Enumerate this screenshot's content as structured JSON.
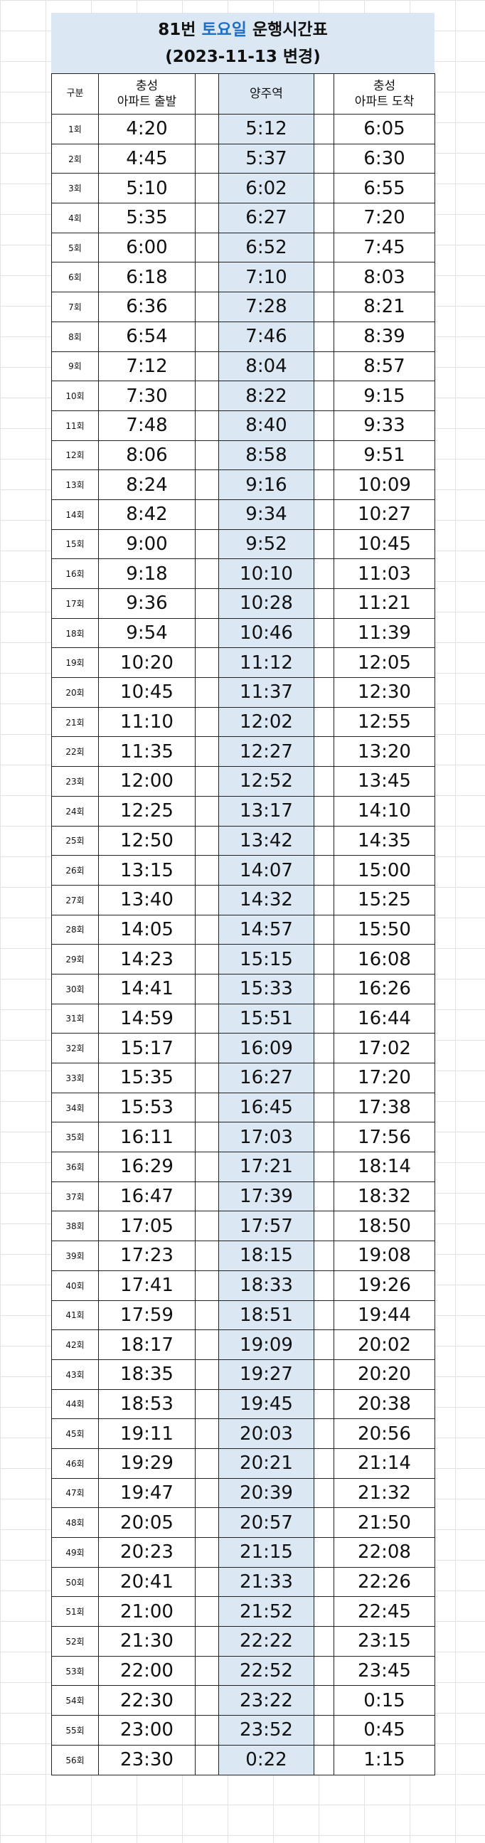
{
  "title": {
    "line1_prefix": "81번",
    "line1_highlight": "토요일",
    "line1_suffix": "운행시간표",
    "line2": "(2023-11-13 변경)"
  },
  "colors": {
    "highlight": "#1f6fc4",
    "header_fill": "#dbe7f3"
  },
  "columns": {
    "index": "구분",
    "start_line1": "충성",
    "start_line2": "아파트 출발",
    "mid": "양주역",
    "end_line1": "충성",
    "end_line2": "아파트 도착"
  },
  "rows": [
    {
      "n": "1회",
      "dep": "4:20",
      "mid": "5:12",
      "arr": "6:05"
    },
    {
      "n": "2회",
      "dep": "4:45",
      "mid": "5:37",
      "arr": "6:30"
    },
    {
      "n": "3회",
      "dep": "5:10",
      "mid": "6:02",
      "arr": "6:55"
    },
    {
      "n": "4회",
      "dep": "5:35",
      "mid": "6:27",
      "arr": "7:20"
    },
    {
      "n": "5회",
      "dep": "6:00",
      "mid": "6:52",
      "arr": "7:45"
    },
    {
      "n": "6회",
      "dep": "6:18",
      "mid": "7:10",
      "arr": "8:03"
    },
    {
      "n": "7회",
      "dep": "6:36",
      "mid": "7:28",
      "arr": "8:21"
    },
    {
      "n": "8회",
      "dep": "6:54",
      "mid": "7:46",
      "arr": "8:39"
    },
    {
      "n": "9회",
      "dep": "7:12",
      "mid": "8:04",
      "arr": "8:57"
    },
    {
      "n": "10회",
      "dep": "7:30",
      "mid": "8:22",
      "arr": "9:15"
    },
    {
      "n": "11회",
      "dep": "7:48",
      "mid": "8:40",
      "arr": "9:33"
    },
    {
      "n": "12회",
      "dep": "8:06",
      "mid": "8:58",
      "arr": "9:51"
    },
    {
      "n": "13회",
      "dep": "8:24",
      "mid": "9:16",
      "arr": "10:09"
    },
    {
      "n": "14회",
      "dep": "8:42",
      "mid": "9:34",
      "arr": "10:27"
    },
    {
      "n": "15회",
      "dep": "9:00",
      "mid": "9:52",
      "arr": "10:45"
    },
    {
      "n": "16회",
      "dep": "9:18",
      "mid": "10:10",
      "arr": "11:03"
    },
    {
      "n": "17회",
      "dep": "9:36",
      "mid": "10:28",
      "arr": "11:21"
    },
    {
      "n": "18회",
      "dep": "9:54",
      "mid": "10:46",
      "arr": "11:39"
    },
    {
      "n": "19회",
      "dep": "10:20",
      "mid": "11:12",
      "arr": "12:05"
    },
    {
      "n": "20회",
      "dep": "10:45",
      "mid": "11:37",
      "arr": "12:30"
    },
    {
      "n": "21회",
      "dep": "11:10",
      "mid": "12:02",
      "arr": "12:55"
    },
    {
      "n": "22회",
      "dep": "11:35",
      "mid": "12:27",
      "arr": "13:20"
    },
    {
      "n": "23회",
      "dep": "12:00",
      "mid": "12:52",
      "arr": "13:45"
    },
    {
      "n": "24회",
      "dep": "12:25",
      "mid": "13:17",
      "arr": "14:10"
    },
    {
      "n": "25회",
      "dep": "12:50",
      "mid": "13:42",
      "arr": "14:35"
    },
    {
      "n": "26회",
      "dep": "13:15",
      "mid": "14:07",
      "arr": "15:00"
    },
    {
      "n": "27회",
      "dep": "13:40",
      "mid": "14:32",
      "arr": "15:25"
    },
    {
      "n": "28회",
      "dep": "14:05",
      "mid": "14:57",
      "arr": "15:50"
    },
    {
      "n": "29회",
      "dep": "14:23",
      "mid": "15:15",
      "arr": "16:08"
    },
    {
      "n": "30회",
      "dep": "14:41",
      "mid": "15:33",
      "arr": "16:26"
    },
    {
      "n": "31회",
      "dep": "14:59",
      "mid": "15:51",
      "arr": "16:44"
    },
    {
      "n": "32회",
      "dep": "15:17",
      "mid": "16:09",
      "arr": "17:02"
    },
    {
      "n": "33회",
      "dep": "15:35",
      "mid": "16:27",
      "arr": "17:20"
    },
    {
      "n": "34회",
      "dep": "15:53",
      "mid": "16:45",
      "arr": "17:38"
    },
    {
      "n": "35회",
      "dep": "16:11",
      "mid": "17:03",
      "arr": "17:56"
    },
    {
      "n": "36회",
      "dep": "16:29",
      "mid": "17:21",
      "arr": "18:14"
    },
    {
      "n": "37회",
      "dep": "16:47",
      "mid": "17:39",
      "arr": "18:32"
    },
    {
      "n": "38회",
      "dep": "17:05",
      "mid": "17:57",
      "arr": "18:50"
    },
    {
      "n": "39회",
      "dep": "17:23",
      "mid": "18:15",
      "arr": "19:08"
    },
    {
      "n": "40회",
      "dep": "17:41",
      "mid": "18:33",
      "arr": "19:26"
    },
    {
      "n": "41회",
      "dep": "17:59",
      "mid": "18:51",
      "arr": "19:44"
    },
    {
      "n": "42회",
      "dep": "18:17",
      "mid": "19:09",
      "arr": "20:02"
    },
    {
      "n": "43회",
      "dep": "18:35",
      "mid": "19:27",
      "arr": "20:20"
    },
    {
      "n": "44회",
      "dep": "18:53",
      "mid": "19:45",
      "arr": "20:38"
    },
    {
      "n": "45회",
      "dep": "19:11",
      "mid": "20:03",
      "arr": "20:56"
    },
    {
      "n": "46회",
      "dep": "19:29",
      "mid": "20:21",
      "arr": "21:14"
    },
    {
      "n": "47회",
      "dep": "19:47",
      "mid": "20:39",
      "arr": "21:32"
    },
    {
      "n": "48회",
      "dep": "20:05",
      "mid": "20:57",
      "arr": "21:50"
    },
    {
      "n": "49회",
      "dep": "20:23",
      "mid": "21:15",
      "arr": "22:08"
    },
    {
      "n": "50회",
      "dep": "20:41",
      "mid": "21:33",
      "arr": "22:26"
    },
    {
      "n": "51회",
      "dep": "21:00",
      "mid": "21:52",
      "arr": "22:45"
    },
    {
      "n": "52회",
      "dep": "21:30",
      "mid": "22:22",
      "arr": "23:15"
    },
    {
      "n": "53회",
      "dep": "22:00",
      "mid": "22:52",
      "arr": "23:45"
    },
    {
      "n": "54회",
      "dep": "22:30",
      "mid": "23:22",
      "arr": "0:15"
    },
    {
      "n": "55회",
      "dep": "23:00",
      "mid": "23:52",
      "arr": "0:45"
    },
    {
      "n": "56회",
      "dep": "23:30",
      "mid": "0:22",
      "arr": "1:15"
    }
  ]
}
